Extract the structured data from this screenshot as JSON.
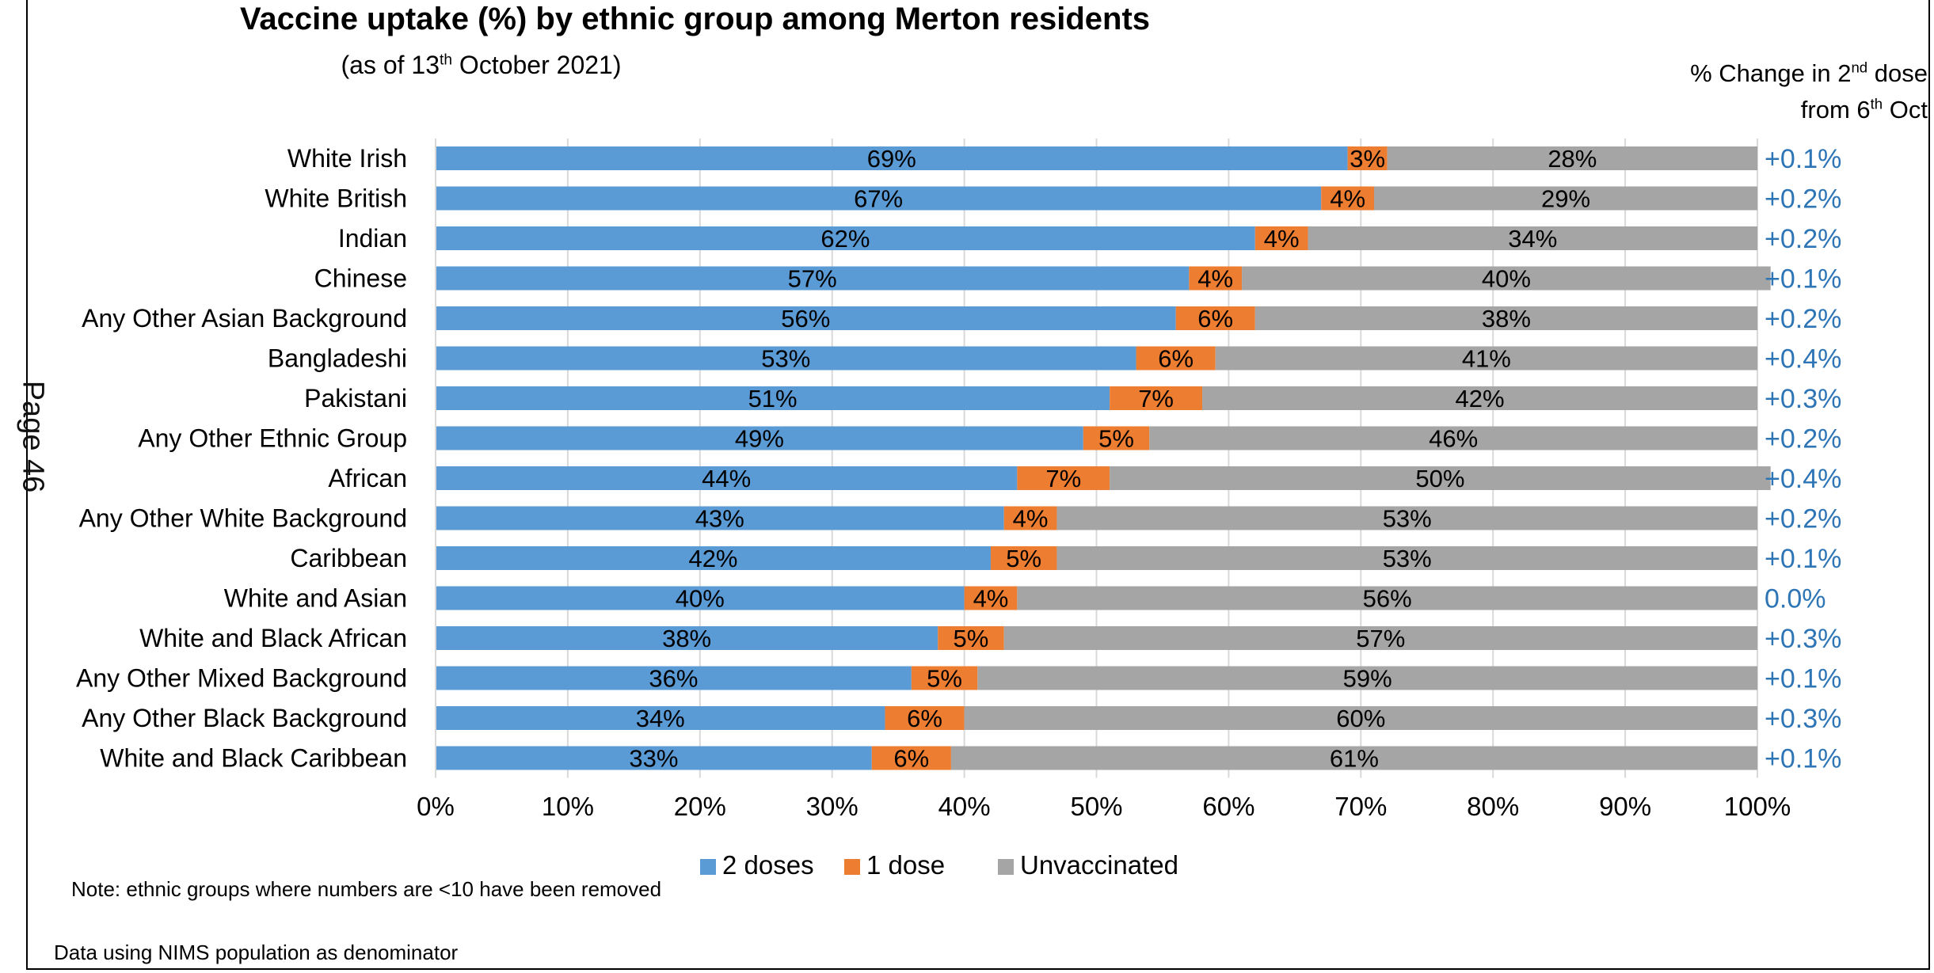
{
  "page_label": "Page 46",
  "title": "Vaccine uptake (%) by ethnic group among Merton residents",
  "subtitle": {
    "pre": "(as of 13",
    "sup": "th",
    "post": " October 2021)"
  },
  "change_header": {
    "line1_pre": "% Change in 2",
    "line1_sup": "nd",
    "line1_post": " dose",
    "line2_pre": "from 6",
    "line2_sup": "th",
    "line2_post": " Oct"
  },
  "note": "Note: ethnic groups where numbers are <10 have been removed",
  "denominator_note": "Data using NIMS population as denominator",
  "colors": {
    "two_doses": "#5B9BD5",
    "one_dose": "#ED7D31",
    "unvaccinated": "#A5A5A5",
    "change": "#2E75B6",
    "grid": "#D9D9D9"
  },
  "chart_data": {
    "type": "bar",
    "orientation": "horizontal",
    "stacked": true,
    "percent_stacked": true,
    "categories": [
      "White Irish",
      "White British",
      "Indian",
      "Chinese",
      "Any Other Asian Background",
      "Bangladeshi",
      "Pakistani",
      "Any Other Ethnic Group",
      "African",
      "Any Other White Background",
      "Caribbean",
      "White and Asian",
      "White and Black African",
      "Any Other Mixed Background",
      "Any Other Black Background",
      "White and Black Caribbean"
    ],
    "series": [
      {
        "name": "2 doses",
        "values": [
          69,
          67,
          62,
          57,
          56,
          53,
          51,
          49,
          44,
          43,
          42,
          40,
          38,
          36,
          34,
          33
        ],
        "labels": [
          "69%",
          "67%",
          "62%",
          "57%",
          "56%",
          "53%",
          "51%",
          "49%",
          "44%",
          "43%",
          "42%",
          "40%",
          "38%",
          "36%",
          "34%",
          "33%"
        ]
      },
      {
        "name": "1 dose",
        "values": [
          3,
          4,
          4,
          4,
          6,
          6,
          7,
          5,
          7,
          4,
          5,
          4,
          5,
          5,
          6,
          6
        ],
        "labels": [
          "3%",
          "4%",
          "4%",
          "4%",
          "6%",
          "6%",
          "7%",
          "5%",
          "7%",
          "4%",
          "5%",
          "4%",
          "5%",
          "5%",
          "6%",
          "6%"
        ]
      },
      {
        "name": "Unvaccinated",
        "values": [
          28,
          29,
          34,
          40,
          38,
          41,
          42,
          46,
          50,
          53,
          53,
          56,
          57,
          59,
          60,
          61
        ],
        "labels": [
          "28%",
          "29%",
          "34%",
          "40%",
          "38%",
          "41%",
          "42%",
          "46%",
          "50%",
          "53%",
          "53%",
          "56%",
          "57%",
          "59%",
          "60%",
          "61%"
        ]
      }
    ],
    "change_in_2nd_dose": [
      "+0.1%",
      "+0.2%",
      "+0.2%",
      "+0.1%",
      "+0.2%",
      "+0.4%",
      "+0.3%",
      "+0.2%",
      "+0.4%",
      "+0.2%",
      "+0.1%",
      "0.0%",
      "+0.3%",
      "+0.1%",
      "+0.3%",
      "+0.1%"
    ],
    "x_ticks": [
      "0%",
      "10%",
      "20%",
      "30%",
      "40%",
      "50%",
      "60%",
      "70%",
      "80%",
      "90%",
      "100%"
    ],
    "xlim": [
      0,
      100
    ],
    "grid": true,
    "legend_position": "bottom"
  }
}
